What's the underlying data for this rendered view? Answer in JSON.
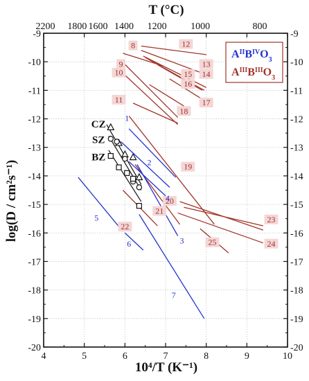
{
  "chart_data": {
    "type": "line",
    "xlabel": "10⁴/T (K⁻¹)",
    "ylabel": "log(D / cm²s⁻¹)",
    "top_axis_label": "T (°C)",
    "xlim": [
      4,
      10
    ],
    "ylim": [
      -20,
      -9
    ],
    "x_ticks": [
      4,
      5,
      6,
      7,
      8,
      9,
      10
    ],
    "y_ticks": [
      -20,
      -19,
      -18,
      -17,
      -16,
      -15,
      -14,
      -13,
      -12,
      -11,
      -10,
      -9
    ],
    "top_ticks": [
      2200,
      1800,
      1600,
      1400,
      1200,
      1000,
      800
    ],
    "grid": true,
    "legend_position": "top-right",
    "legend": [
      {
        "label": "AIIBIVO3",
        "color": "#2233cc"
      },
      {
        "label": "AIIIBIIIO3",
        "color": "#a0342a"
      }
    ],
    "colors": {
      "A2B4": "#2233cc",
      "A3B3": "#a0342a",
      "label_bg": "#f4d6d6"
    },
    "series_A2B4": [
      {
        "name": "1",
        "x": [
          6.1,
          7.25
        ],
        "y": [
          -12.35,
          -14.05
        ],
        "label_at": [
          6.05,
          -12.05
        ]
      },
      {
        "name": "2",
        "x": [
          5.9,
          7.1
        ],
        "y": [
          -12.8,
          -14.4
        ],
        "label_at": [
          6.6,
          -13.6
        ]
      },
      {
        "name": "3",
        "x": [
          6.3,
          7.3
        ],
        "y": [
          -13.6,
          -16.1
        ],
        "label_at": [
          7.4,
          -16.35
        ]
      },
      {
        "name": "4",
        "x": [
          6.1,
          7.0
        ],
        "y": [
          -13.5,
          -14.7
        ],
        "label_at": [
          7.05,
          -14.85
        ]
      },
      {
        "name": "5",
        "x": [
          4.85,
          5.95
        ],
        "y": [
          -14.05,
          -15.95
        ],
        "label_at": [
          5.3,
          -15.55
        ]
      },
      {
        "name": "6",
        "x": [
          6.0,
          6.45
        ],
        "y": [
          -16.0,
          -16.6
        ],
        "label_at": [
          6.1,
          -16.45
        ]
      },
      {
        "name": "7",
        "x": [
          6.35,
          7.95
        ],
        "y": [
          -15.35,
          -19.0
        ],
        "label_at": [
          7.2,
          -18.25
        ]
      }
    ],
    "series_A3B3": [
      {
        "name": "8",
        "x": [
          5.95,
          6.95
        ],
        "y": [
          -9.7,
          -10.15
        ],
        "label_at": [
          6.2,
          -9.5
        ]
      },
      {
        "name": "9",
        "x": [
          5.9,
          7.3
        ],
        "y": [
          -9.95,
          -11.95
        ],
        "label_at": [
          5.9,
          -10.15
        ]
      },
      {
        "name": "10",
        "x": [
          5.95,
          7.3
        ],
        "y": [
          -10.4,
          -12.2
        ],
        "label_at": [
          5.85,
          -10.45
        ]
      },
      {
        "name": "11",
        "x": [
          6.2,
          7.3
        ],
        "y": [
          -11.45,
          -12.15
        ],
        "label_at": [
          5.85,
          -11.4
        ]
      },
      {
        "name": "12",
        "x": [
          6.4,
          8.0
        ],
        "y": [
          -9.45,
          -9.75
        ],
        "label_at": [
          7.5,
          -9.45
        ]
      },
      {
        "name": "13",
        "x": [
          6.4,
          8.0
        ],
        "y": [
          -9.6,
          -10.45
        ],
        "label_at": [
          8.0,
          -10.15
        ]
      },
      {
        "name": "14",
        "x": [
          6.45,
          8.0
        ],
        "y": [
          -9.8,
          -10.9
        ],
        "label_at": [
          8.0,
          -10.5
        ]
      },
      {
        "name": "15",
        "x": [
          6.5,
          7.95
        ],
        "y": [
          -9.85,
          -11.0
        ],
        "label_at": [
          7.55,
          -10.5
        ]
      },
      {
        "name": "16",
        "x": [
          6.8,
          7.9
        ],
        "y": [
          -10.1,
          -11.0
        ],
        "label_at": [
          7.55,
          -10.85
        ]
      },
      {
        "name": "17",
        "x": [
          7.1,
          8.0
        ],
        "y": [
          -10.6,
          -11.4
        ],
        "label_at": [
          8.0,
          -11.5
        ]
      },
      {
        "name": "18",
        "x": [
          6.6,
          7.45
        ],
        "y": [
          -10.8,
          -11.55
        ],
        "label_at": [
          7.45,
          -11.8
        ]
      },
      {
        "name": "19",
        "x": [
          6.1,
          8.2
        ],
        "y": [
          -11.9,
          -15.7
        ],
        "label_at": [
          7.55,
          -13.75
        ]
      },
      {
        "name": "20",
        "x": [
          7.35,
          9.4
        ],
        "y": [
          -14.9,
          -15.9
        ],
        "label_at": [
          7.1,
          -14.95
        ]
      },
      {
        "name": "21",
        "x": [
          6.25,
          7.35
        ],
        "y": [
          -13.6,
          -15.7
        ],
        "label_at": [
          6.85,
          -15.3
        ]
      },
      {
        "name": "22",
        "x": [
          5.95,
          6.8
        ],
        "y": [
          -14.5,
          -15.75
        ],
        "label_at": [
          6.0,
          -15.85
        ]
      },
      {
        "name": "23",
        "x": [
          7.45,
          9.4
        ],
        "y": [
          -15.1,
          -15.75
        ],
        "label_at": [
          9.6,
          -15.6
        ]
      },
      {
        "name": "24",
        "x": [
          7.3,
          9.4
        ],
        "y": [
          -15.3,
          -16.35
        ],
        "label_at": [
          9.6,
          -16.45
        ]
      },
      {
        "name": "25",
        "x": [
          7.85,
          8.55
        ],
        "y": [
          -15.85,
          -16.7
        ],
        "label_at": [
          8.15,
          -16.4
        ]
      }
    ],
    "series_markers": [
      {
        "name": "CZ",
        "marker": "triangle",
        "label_at": [
          5.35,
          -12.3
        ],
        "fit_x": [
          5.55,
          6.4
        ],
        "fit_y": [
          -12.2,
          -14.3
        ],
        "points": [
          [
            5.65,
            -12.3
          ],
          [
            5.85,
            -12.85
          ],
          [
            6.0,
            -13.25
          ],
          [
            6.2,
            -13.35
          ],
          [
            6.35,
            -14.05
          ]
        ]
      },
      {
        "name": "SZ",
        "marker": "circle",
        "label_at": [
          5.35,
          -12.85
        ],
        "fit_x": [
          5.6,
          6.4
        ],
        "fit_y": [
          -12.6,
          -14.5
        ],
        "points": [
          [
            5.65,
            -12.7
          ],
          [
            5.8,
            -12.8
          ],
          [
            6.0,
            -13.4
          ],
          [
            6.2,
            -14.2
          ],
          [
            6.35,
            -14.4
          ]
        ]
      },
      {
        "name": "BZ",
        "marker": "square",
        "label_at": [
          5.35,
          -13.45
        ],
        "fit_x": [
          5.6,
          6.4
        ],
        "fit_y": [
          -13.1,
          -14.9
        ],
        "points": [
          [
            5.65,
            -13.3
          ],
          [
            5.85,
            -13.7
          ],
          [
            6.05,
            -13.9
          ],
          [
            6.2,
            -14.1
          ],
          [
            6.35,
            -15.05
          ]
        ]
      }
    ]
  }
}
